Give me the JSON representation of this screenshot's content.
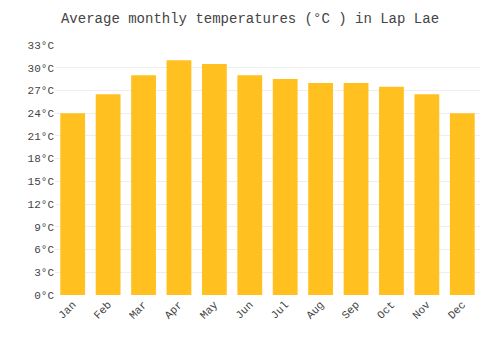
{
  "chart_data": {
    "type": "bar",
    "title": "Average monthly temperatures (°C ) in Lap Lae",
    "categories": [
      "Jan",
      "Feb",
      "Mar",
      "Apr",
      "May",
      "Jun",
      "Jul",
      "Aug",
      "Sep",
      "Oct",
      "Nov",
      "Dec"
    ],
    "values": [
      24.0,
      26.5,
      29.0,
      31.0,
      30.5,
      29.0,
      28.5,
      28.0,
      28.0,
      27.5,
      26.5,
      24.0
    ],
    "color": "#FFC020",
    "ylim": [
      0,
      33
    ],
    "yticks": [
      {
        "value": 0,
        "label": "0°C"
      },
      {
        "value": 3,
        "label": "3°C"
      },
      {
        "value": 6,
        "label": "6°C"
      },
      {
        "value": 9,
        "label": "9°C"
      },
      {
        "value": 12,
        "label": "12°C"
      },
      {
        "value": 15,
        "label": "15°C"
      },
      {
        "value": 18,
        "label": "18°C"
      },
      {
        "value": 21,
        "label": "21°C"
      },
      {
        "value": 24,
        "label": "24°C"
      },
      {
        "value": 27,
        "label": "27°C"
      },
      {
        "value": 30,
        "label": "30°C"
      },
      {
        "value": 33,
        "label": "33°C"
      }
    ],
    "grid": true
  }
}
